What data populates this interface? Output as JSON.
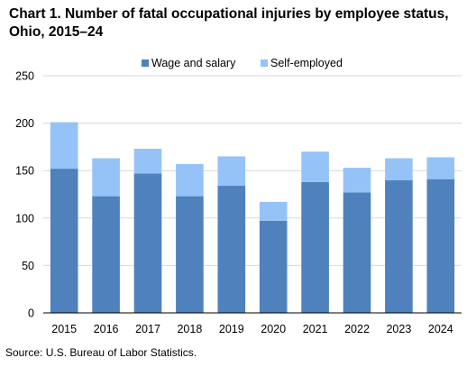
{
  "title": "Chart 1. Number of fatal occupational injuries by employee status, Ohio, 2015–24",
  "source": "Source: U.S. Bureau of Labor Statistics.",
  "colors": {
    "wage": "#4f81bd",
    "self": "#95c3f7",
    "grid": "#d9d9d9",
    "axis": "#000000"
  },
  "chart_data": {
    "type": "bar",
    "stacked": true,
    "categories": [
      "2015",
      "2016",
      "2017",
      "2018",
      "2019",
      "2020",
      "2021",
      "2022",
      "2023",
      "2024"
    ],
    "series": [
      {
        "name": "Wage and salary",
        "values": [
          152,
          123,
          147,
          123,
          134,
          97,
          138,
          127,
          140,
          141
        ]
      },
      {
        "name": "Self-employed",
        "values": [
          49,
          40,
          26,
          34,
          31,
          20,
          32,
          26,
          23,
          23
        ]
      }
    ],
    "ylim": [
      0,
      250
    ],
    "yticks": [
      0,
      50,
      100,
      150,
      200,
      250
    ],
    "grid": true,
    "legend": "top-center"
  }
}
